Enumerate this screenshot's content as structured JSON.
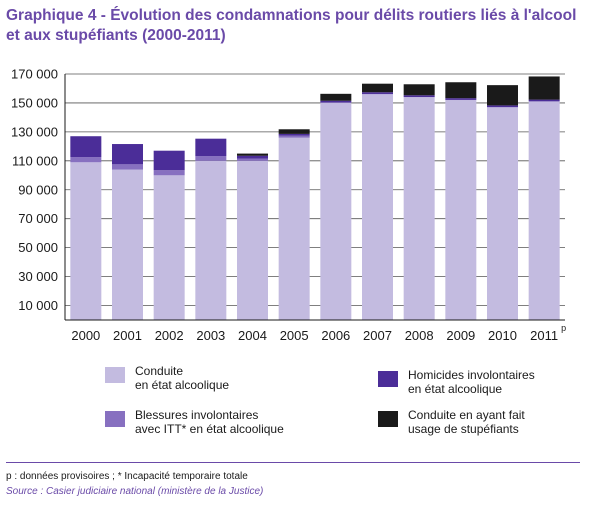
{
  "chart_data": {
    "type": "bar",
    "stacked": true,
    "title": "Graphique 4 - Évolution des condamnations pour délits routiers liés à l'alcool et aux stupéfiants (2000-2011)",
    "categories": [
      "2000",
      "2001",
      "2002",
      "2003",
      "2004",
      "2005",
      "2006",
      "2007",
      "2008",
      "2009",
      "2010",
      "2011"
    ],
    "category_superscripts": [
      "",
      "",
      "",
      "",
      "",
      "",
      "",
      "",
      "",
      "",
      "",
      "p"
    ],
    "ylim": [
      0,
      170000
    ],
    "yticks": [
      10000,
      30000,
      50000,
      70000,
      90000,
      110000,
      130000,
      150000,
      170000
    ],
    "ytick_labels": [
      "10 000",
      "30 000",
      "50 000",
      "70 000",
      "90 000",
      "110 000",
      "130 000",
      "150 000",
      "170 000"
    ],
    "grid": "horizontal",
    "series": [
      {
        "name": "Conduite en état alcoolique",
        "color": "#c3bbe0",
        "values": [
          109000,
          104000,
          100000,
          110000,
          110000,
          126000,
          150000,
          156000,
          154000,
          152000,
          147000,
          151000
        ]
      },
      {
        "name": "Blessures involontaires avec ITT* en état alcoolique",
        "color": "#8770c0",
        "values": [
          3600,
          3600,
          3500,
          3300,
          1500,
          1400,
          400,
          200,
          100,
          100,
          100,
          100
        ]
      },
      {
        "name": "Homicides involontaires en état alcoolique",
        "color": "#4b2d98",
        "values": [
          14400,
          14000,
          13500,
          12000,
          2000,
          1200,
          1100,
          1200,
          1200,
          1200,
          1200,
          1200
        ]
      },
      {
        "name": "Conduite en ayant fait usage de stupéfiants",
        "color": "#1a1a1a",
        "values": [
          0,
          0,
          0,
          0,
          1500,
          3200,
          4800,
          5900,
          7600,
          11000,
          14000,
          16000
        ]
      }
    ]
  },
  "legend": [
    {
      "lines": [
        "Conduite",
        "en état alcoolique"
      ],
      "color": "#c3bbe0"
    },
    {
      "lines": [
        "Homicides involontaires",
        "en état alcoolique"
      ],
      "color": "#4b2d98"
    },
    {
      "lines": [
        "Blessures involontaires",
        "avec ITT* en état alcoolique"
      ],
      "color": "#8770c0"
    },
    {
      "lines": [
        "Conduite en ayant fait",
        "usage de stupéfiants"
      ],
      "color": "#1a1a1a"
    }
  ],
  "footnote": "p : données provisoires  ; * Incapacité temporaire totale",
  "source": "Source : Casier judiciaire national (ministère de la Justice)"
}
